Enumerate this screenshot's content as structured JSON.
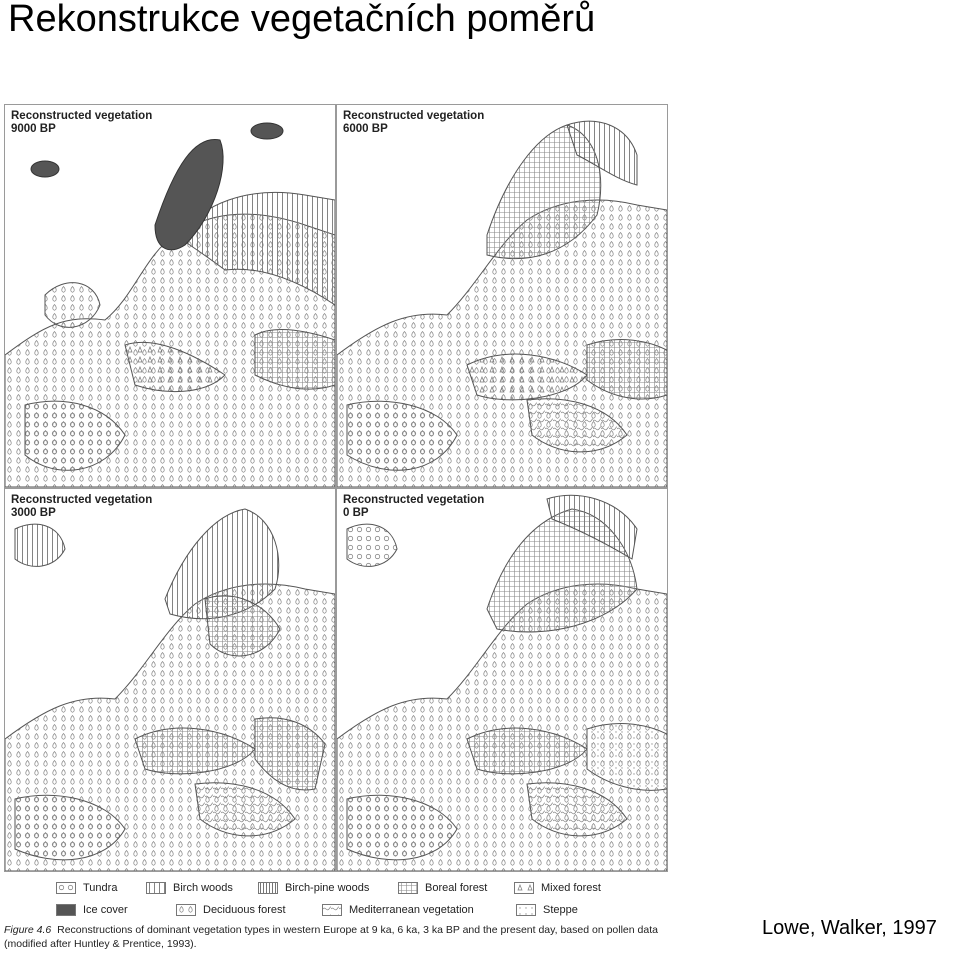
{
  "slide": {
    "title": "Rekonstrukce vegetačních poměrů",
    "source_credit": "Lowe, Walker, 1997"
  },
  "panels": [
    {
      "caption_line1": "Reconstructed vegetation",
      "caption_line2": "9000 BP"
    },
    {
      "caption_line1": "Reconstructed vegetation",
      "caption_line2": "6000 BP"
    },
    {
      "caption_line1": "Reconstructed vegetation",
      "caption_line2": "3000 BP"
    },
    {
      "caption_line1": "Reconstructed vegetation",
      "caption_line2": "0 BP"
    }
  ],
  "legend": [
    {
      "label": "Tundra",
      "pattern": "tundra-icon"
    },
    {
      "label": "Birch woods",
      "pattern": "birch-icon"
    },
    {
      "label": "Birch-pine woods",
      "pattern": "birchpine-icon"
    },
    {
      "label": "Boreal forest",
      "pattern": "boreal-icon"
    },
    {
      "label": "Mixed forest",
      "pattern": "mixed-icon"
    },
    {
      "label": "Ice cover",
      "pattern": "ice-icon"
    },
    {
      "label": "Deciduous forest",
      "pattern": "deciduous-icon"
    },
    {
      "label": "Mediterranean vegetation",
      "pattern": "mediterranean-icon"
    },
    {
      "label": "Steppe",
      "pattern": "steppe-icon"
    }
  ],
  "figure_caption": {
    "number": "Figure 4.6",
    "text": "Reconstructions of dominant vegetation types in western Europe at 9 ka, 6 ka, 3 ka BP and the present day, based on pollen data (modified after Huntley & Prentice, 1993)."
  },
  "colors": {
    "ice": "#555555",
    "outline": "#555555",
    "pattern_ink": "#777777"
  }
}
